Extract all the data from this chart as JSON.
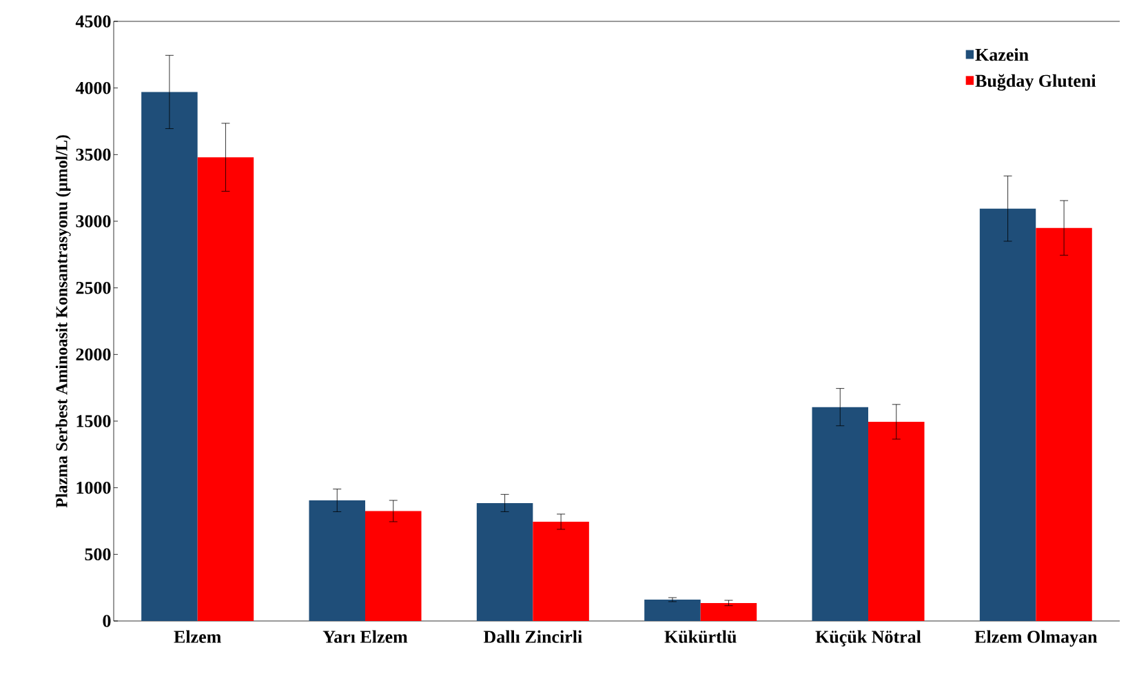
{
  "chart_data": {
    "type": "bar",
    "ylabel": "Plazma Serbest Aminoasit  Konsantrasyonu (µmol/L)",
    "categories": [
      "Elzem",
      "Yarı Elzem",
      "Dallı Zincirli",
      "Kükürtlü",
      "Küçük Nötral",
      "Elzem Olmayan"
    ],
    "series": [
      {
        "name": "Kazein",
        "color": "#1f4e79",
        "values": [
          3970,
          905,
          885,
          160,
          1605,
          3095
        ],
        "errors": [
          275,
          85,
          65,
          15,
          140,
          245
        ]
      },
      {
        "name": "Buğday Gluteni",
        "color": "#ff0000",
        "values": [
          3480,
          825,
          745,
          135,
          1495,
          2950
        ],
        "errors": [
          255,
          80,
          57,
          20,
          130,
          205
        ]
      }
    ],
    "ylim": [
      0,
      4500
    ],
    "yticks": [
      0,
      500,
      1000,
      1500,
      2000,
      2500,
      3000,
      3500,
      4000,
      4500
    ],
    "grid": false,
    "legend": "top right"
  }
}
